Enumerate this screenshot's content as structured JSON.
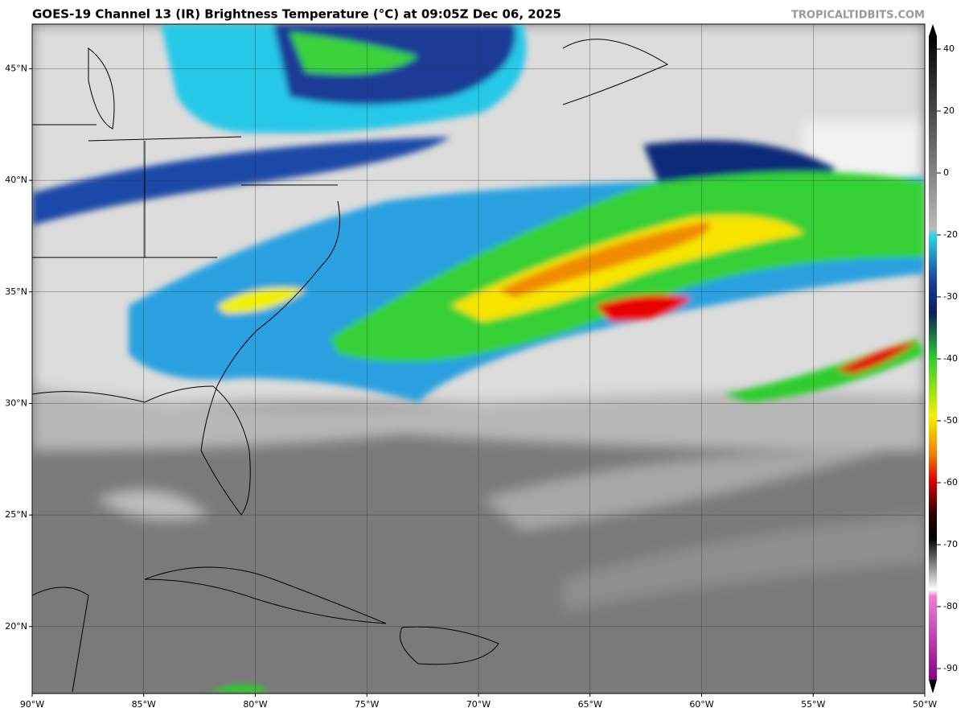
{
  "chart_data": {
    "type": "map",
    "title": "GOES-19 Channel 13 (IR) Brightness Temperature (°C) at 09:05Z Dec 06, 2025",
    "watermark": "TROPICALTIDBITS.COM",
    "xlim": [
      -90,
      -50
    ],
    "ylim": [
      17,
      47
    ],
    "xticks": [
      {
        "value": -90,
        "label": "90°W"
      },
      {
        "value": -85,
        "label": "85°W"
      },
      {
        "value": -80,
        "label": "80°W"
      },
      {
        "value": -75,
        "label": "75°W"
      },
      {
        "value": -70,
        "label": "70°W"
      },
      {
        "value": -65,
        "label": "65°W"
      },
      {
        "value": -60,
        "label": "60°W"
      },
      {
        "value": -55,
        "label": "55°W"
      },
      {
        "value": -50,
        "label": "50°W"
      }
    ],
    "yticks": [
      {
        "value": 20,
        "label": "20°N"
      },
      {
        "value": 25,
        "label": "25°N"
      },
      {
        "value": 30,
        "label": "30°N"
      },
      {
        "value": 35,
        "label": "35°N"
      },
      {
        "value": 40,
        "label": "40°N"
      },
      {
        "value": 45,
        "label": "45°N"
      }
    ],
    "grid": true,
    "colorbar_ticks": [
      40,
      20,
      0,
      -20,
      -30,
      -40,
      -50,
      -60,
      -70,
      -80,
      -90
    ]
  }
}
